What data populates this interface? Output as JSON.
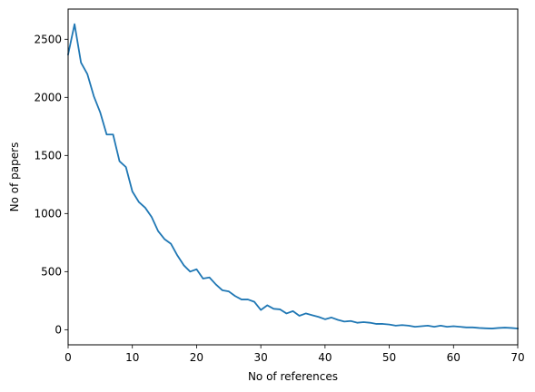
{
  "chart_data": {
    "type": "line",
    "title": "",
    "xlabel": "No of references",
    "ylabel": "No of papers",
    "xlim": [
      0,
      70
    ],
    "ylim": [
      -130,
      2760
    ],
    "grid": false,
    "legend": "none",
    "xticks": [
      0,
      10,
      20,
      30,
      40,
      50,
      60,
      70
    ],
    "yticks": [
      0,
      500,
      1000,
      1500,
      2000,
      2500
    ],
    "colors": {
      "line": "#1f77b4",
      "axes": "#000000",
      "background": "#ffffff"
    },
    "series": [
      {
        "x": [
          0,
          1,
          2,
          3,
          4,
          5,
          6,
          7,
          8,
          9,
          10,
          11,
          12,
          13,
          14,
          15,
          16,
          17,
          18,
          19,
          20,
          21,
          22,
          23,
          24,
          25,
          26,
          27,
          28,
          29,
          30,
          31,
          32,
          33,
          34,
          35,
          36,
          37,
          38,
          39,
          40,
          41,
          42,
          43,
          44,
          45,
          46,
          47,
          48,
          49,
          50,
          51,
          52,
          53,
          54,
          55,
          56,
          57,
          58,
          59,
          60,
          61,
          62,
          63,
          64,
          65,
          66,
          67,
          68,
          69,
          70
        ],
        "y": [
          2370,
          2630,
          2300,
          2200,
          2010,
          1870,
          1680,
          1680,
          1450,
          1400,
          1190,
          1100,
          1050,
          970,
          850,
          780,
          740,
          640,
          555,
          500,
          520,
          440,
          450,
          390,
          340,
          330,
          290,
          260,
          260,
          240,
          170,
          210,
          180,
          175,
          140,
          160,
          120,
          140,
          125,
          110,
          90,
          105,
          85,
          70,
          75,
          60,
          65,
          60,
          50,
          50,
          45,
          35,
          40,
          35,
          25,
          30,
          35,
          25,
          35,
          25,
          30,
          25,
          20,
          20,
          15,
          12,
          10,
          15,
          18,
          15,
          10
        ]
      }
    ]
  }
}
